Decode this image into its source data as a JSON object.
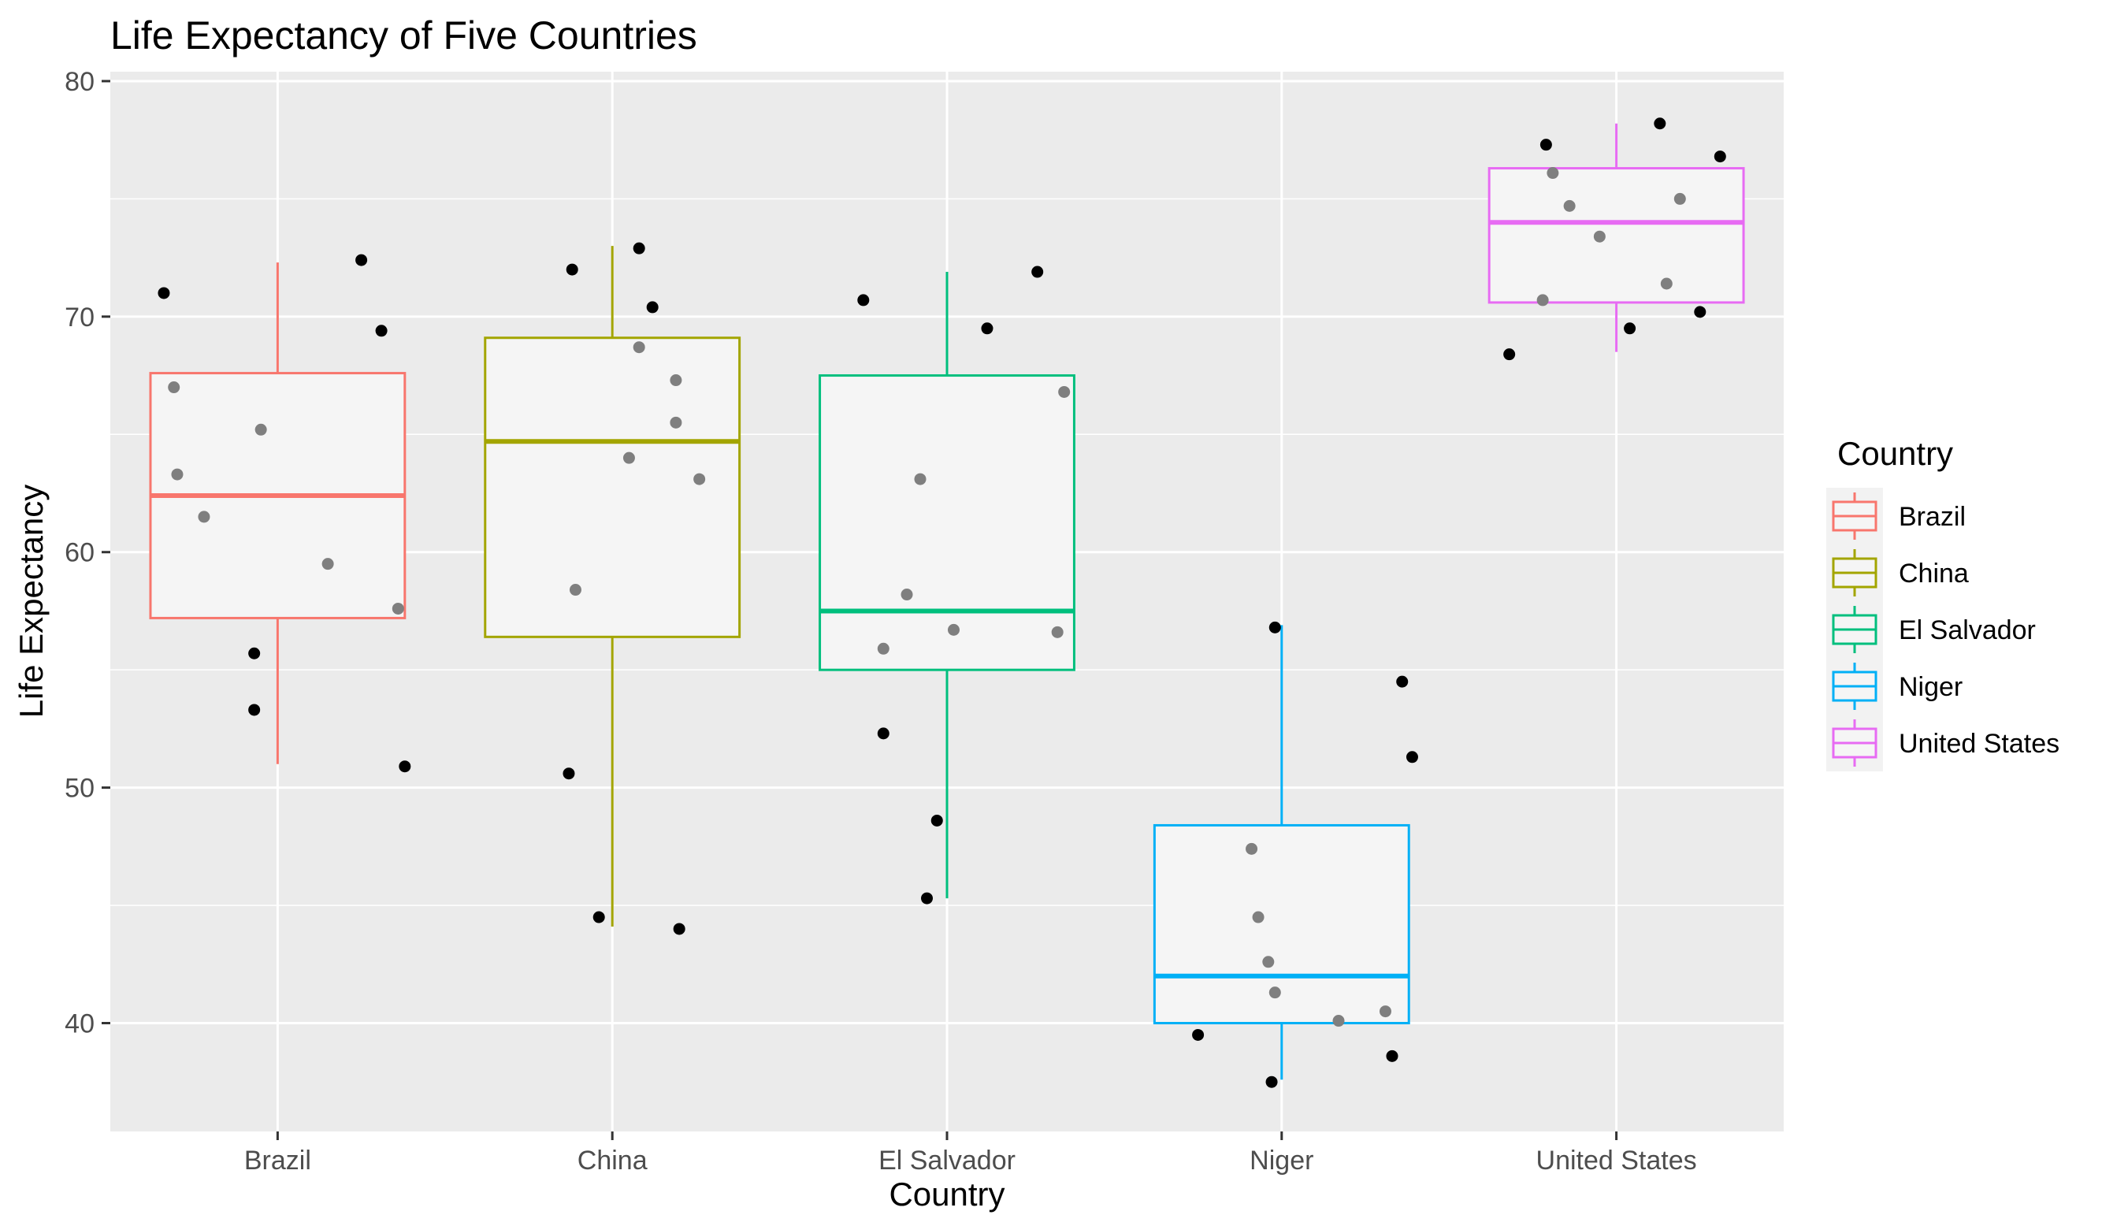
{
  "chart_data": {
    "type": "box",
    "title": "Life Expectancy of Five Countries",
    "xlabel": "Country",
    "ylabel": "Life Expectancy",
    "ylim": [
      35.4,
      80.4
    ],
    "yticks": [
      40,
      50,
      60,
      70,
      80
    ],
    "categories": [
      "Brazil",
      "China",
      "El Salvador",
      "Niger",
      "United States"
    ],
    "legend": {
      "title": "Country",
      "position": "right"
    },
    "grid": true,
    "series": [
      {
        "name": "Brazil",
        "color": "#F8766D",
        "box": {
          "whisker_low": 51.0,
          "q1": 57.2,
          "median": 62.4,
          "q3": 67.6,
          "whisker_high": 72.3
        },
        "points": [
          {
            "dx": -0.34,
            "y": 71.0
          },
          {
            "dx": -0.31,
            "y": 67.0
          },
          {
            "dx": -0.3,
            "y": 63.3
          },
          {
            "dx": -0.22,
            "y": 61.5
          },
          {
            "dx": -0.05,
            "y": 65.2
          },
          {
            "dx": -0.07,
            "y": 55.7
          },
          {
            "dx": -0.07,
            "y": 53.3
          },
          {
            "dx": 0.15,
            "y": 59.5
          },
          {
            "dx": 0.25,
            "y": 72.4
          },
          {
            "dx": 0.31,
            "y": 69.4
          },
          {
            "dx": 0.36,
            "y": 57.6
          },
          {
            "dx": 0.38,
            "y": 50.9
          }
        ]
      },
      {
        "name": "China",
        "color": "#A3A500",
        "box": {
          "whisker_low": 44.1,
          "q1": 56.4,
          "median": 64.7,
          "q3": 69.1,
          "whisker_high": 73.0
        },
        "points": [
          {
            "dx": -0.12,
            "y": 72.0
          },
          {
            "dx": -0.13,
            "y": 50.6
          },
          {
            "dx": -0.11,
            "y": 58.4
          },
          {
            "dx": -0.04,
            "y": 44.5
          },
          {
            "dx": 0.05,
            "y": 64.0
          },
          {
            "dx": 0.08,
            "y": 72.9
          },
          {
            "dx": 0.08,
            "y": 68.7
          },
          {
            "dx": 0.12,
            "y": 70.4
          },
          {
            "dx": 0.19,
            "y": 67.3
          },
          {
            "dx": 0.19,
            "y": 65.5
          },
          {
            "dx": 0.2,
            "y": 44.0
          },
          {
            "dx": 0.26,
            "y": 63.1
          }
        ]
      },
      {
        "name": "El Salvador",
        "color": "#00BF7D",
        "box": {
          "whisker_low": 45.3,
          "q1": 55.0,
          "median": 57.5,
          "q3": 67.5,
          "whisker_high": 71.9
        },
        "points": [
          {
            "dx": -0.25,
            "y": 70.7
          },
          {
            "dx": -0.19,
            "y": 55.9
          },
          {
            "dx": -0.19,
            "y": 52.3
          },
          {
            "dx": -0.12,
            "y": 58.2
          },
          {
            "dx": -0.08,
            "y": 63.1
          },
          {
            "dx": -0.06,
            "y": 45.3
          },
          {
            "dx": -0.03,
            "y": 48.6
          },
          {
            "dx": 0.02,
            "y": 56.7
          },
          {
            "dx": 0.12,
            "y": 69.5
          },
          {
            "dx": 0.27,
            "y": 71.9
          },
          {
            "dx": 0.33,
            "y": 56.6
          },
          {
            "dx": 0.35,
            "y": 66.8
          }
        ]
      },
      {
        "name": "Niger",
        "color": "#00B0F6",
        "box": {
          "whisker_low": 37.6,
          "q1": 40.0,
          "median": 42.0,
          "q3": 48.4,
          "whisker_high": 56.9
        },
        "points": [
          {
            "dx": -0.25,
            "y": 39.5
          },
          {
            "dx": -0.09,
            "y": 47.4
          },
          {
            "dx": -0.07,
            "y": 44.5
          },
          {
            "dx": -0.04,
            "y": 42.6
          },
          {
            "dx": -0.02,
            "y": 41.3
          },
          {
            "dx": -0.03,
            "y": 37.5
          },
          {
            "dx": -0.02,
            "y": 56.8
          },
          {
            "dx": 0.17,
            "y": 40.1
          },
          {
            "dx": 0.31,
            "y": 40.5
          },
          {
            "dx": 0.33,
            "y": 38.6
          },
          {
            "dx": 0.36,
            "y": 54.5
          },
          {
            "dx": 0.39,
            "y": 51.3
          }
        ]
      },
      {
        "name": "United States",
        "color": "#E76BF3",
        "box": {
          "whisker_low": 68.5,
          "q1": 70.6,
          "median": 74.0,
          "q3": 76.3,
          "whisker_high": 78.2
        },
        "points": [
          {
            "dx": -0.32,
            "y": 68.4
          },
          {
            "dx": -0.22,
            "y": 70.7
          },
          {
            "dx": -0.21,
            "y": 77.3
          },
          {
            "dx": -0.19,
            "y": 76.1
          },
          {
            "dx": -0.14,
            "y": 74.7
          },
          {
            "dx": -0.05,
            "y": 73.4
          },
          {
            "dx": 0.04,
            "y": 69.5
          },
          {
            "dx": 0.13,
            "y": 78.2
          },
          {
            "dx": 0.15,
            "y": 71.4
          },
          {
            "dx": 0.19,
            "y": 75.0
          },
          {
            "dx": 0.25,
            "y": 70.2
          },
          {
            "dx": 0.31,
            "y": 76.8
          }
        ]
      }
    ]
  }
}
